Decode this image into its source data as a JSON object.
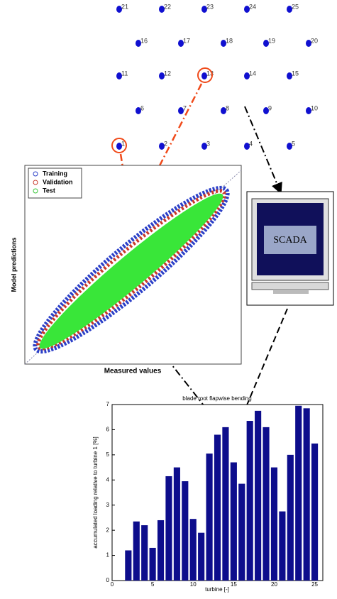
{
  "turbines": [
    "1",
    "2",
    "3",
    "4",
    "5",
    "6",
    "7",
    "8",
    "9",
    "10",
    "11",
    "12",
    "13",
    "14",
    "15",
    "16",
    "17",
    "18",
    "19",
    "20",
    "21",
    "22",
    "23",
    "24",
    "25"
  ],
  "scatter": {
    "legend": [
      "Training",
      "Validation",
      "Test"
    ],
    "xlabel": "Measured values",
    "ylabel": "Model predictions"
  },
  "scada": "SCADA",
  "chart_data": {
    "type": "bar",
    "title": "blade root flapwise bending",
    "xlabel": "turbine [-]",
    "ylabel": "accumulated loading relative to turbine 1 [%]",
    "x": [
      2,
      3,
      4,
      5,
      6,
      7,
      8,
      9,
      10,
      11,
      12,
      13,
      14,
      15,
      16,
      17,
      18,
      19,
      20,
      21,
      22,
      23,
      24,
      25
    ],
    "values": [
      1.2,
      2.35,
      2.2,
      1.3,
      2.4,
      4.15,
      4.5,
      3.95,
      2.45,
      1.9,
      5.05,
      5.8,
      6.1,
      4.7,
      3.85,
      6.35,
      6.75,
      6.1,
      4.5,
      2.75,
      5.0,
      6.95,
      6.85,
      5.45
    ],
    "color": "#0d0d8c",
    "xlim": [
      0,
      26
    ],
    "xticks": [
      0,
      5,
      10,
      15,
      20,
      25
    ],
    "ylim": [
      0,
      7
    ],
    "yticks": [
      0,
      1,
      2,
      3,
      4,
      5,
      6,
      7
    ]
  }
}
